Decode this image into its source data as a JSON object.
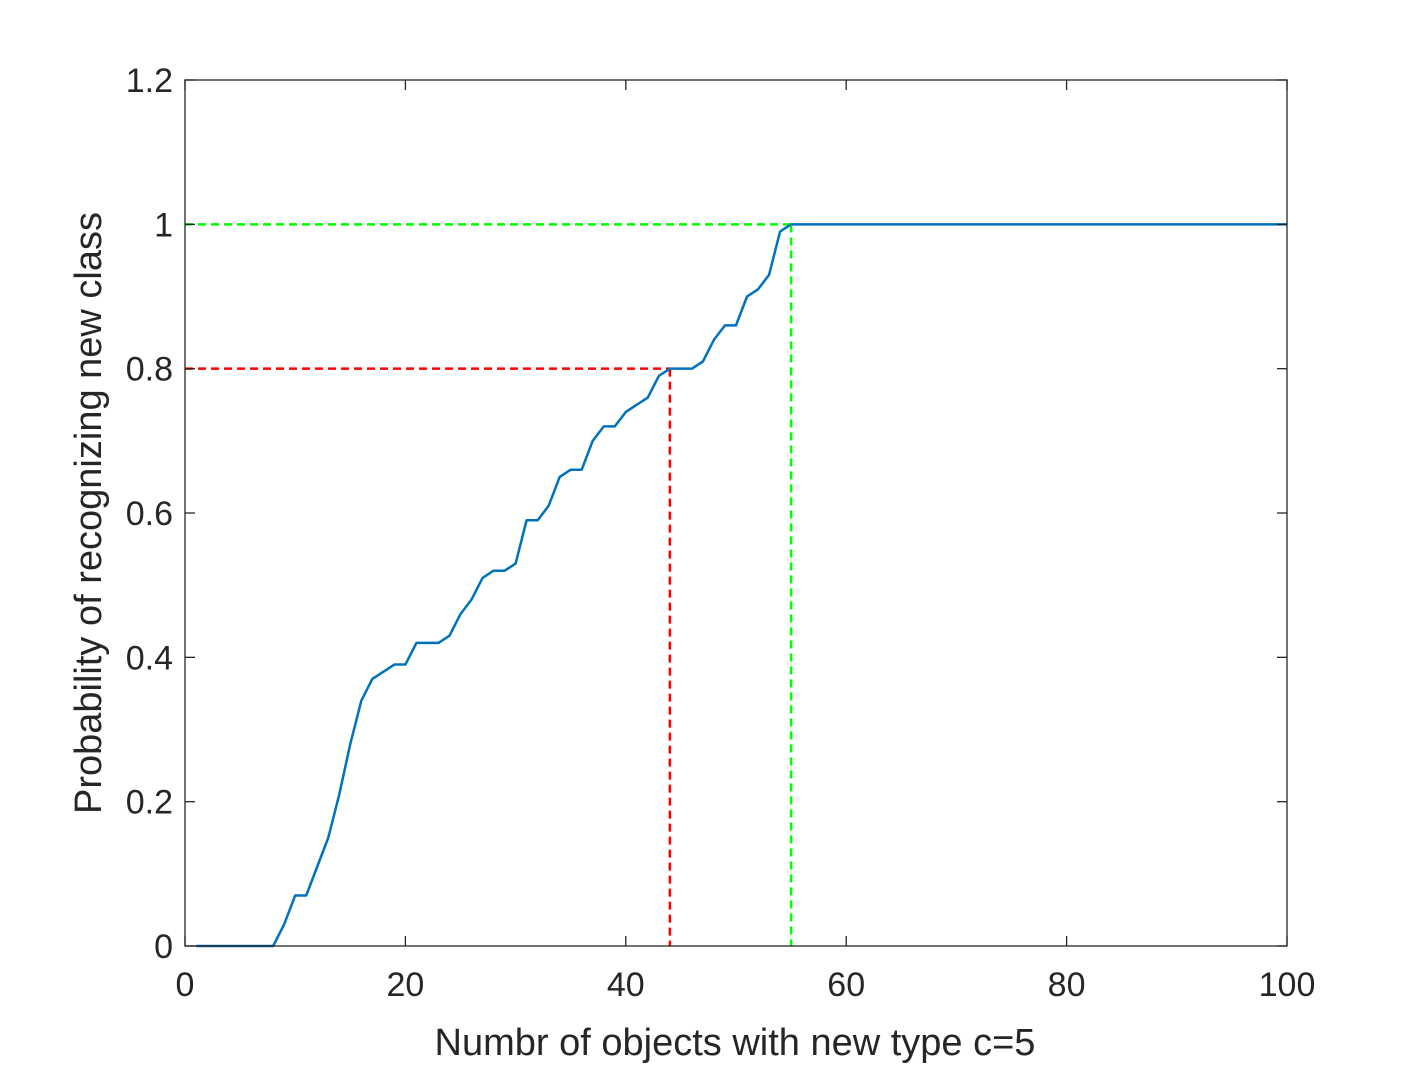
{
  "chart_data": {
    "type": "line",
    "title": "",
    "xlabel": "Numbr of objects with new type c=5",
    "ylabel": "Probability of recognizing new class",
    "xlim": [
      0,
      100
    ],
    "ylim": [
      0,
      1.2
    ],
    "xticks": [
      0,
      20,
      40,
      60,
      80,
      100
    ],
    "yticks": [
      0,
      0.2,
      0.4,
      0.6,
      0.8,
      1,
      1.2
    ],
    "xtick_labels": [
      "0",
      "20",
      "40",
      "60",
      "80",
      "100"
    ],
    "ytick_labels": [
      "0",
      "0.2",
      "0.4",
      "0.6",
      "0.8",
      "1",
      "1.2"
    ],
    "grid": false,
    "series": [
      {
        "color": "#0072BD",
        "x": [
          1,
          2,
          3,
          4,
          5,
          6,
          7,
          8,
          9,
          10,
          11,
          12,
          13,
          14,
          15,
          16,
          17,
          18,
          19,
          20,
          21,
          22,
          23,
          24,
          25,
          26,
          27,
          28,
          29,
          30,
          31,
          32,
          33,
          34,
          35,
          36,
          37,
          38,
          39,
          40,
          41,
          42,
          43,
          44,
          45,
          46,
          47,
          48,
          49,
          50,
          51,
          52,
          53,
          54,
          55,
          56,
          57,
          58,
          59,
          60,
          61,
          62,
          63,
          64,
          65,
          66,
          67,
          68,
          69,
          70,
          71,
          72,
          73,
          74,
          75,
          76,
          77,
          78,
          79,
          80,
          81,
          82,
          83,
          84,
          85,
          86,
          87,
          88,
          89,
          90,
          91,
          92,
          93,
          94,
          95,
          96,
          97,
          98,
          99,
          100
        ],
        "y": [
          0,
          0,
          0,
          0,
          0,
          0,
          0,
          0,
          0.03,
          0.07,
          0.07,
          0.11,
          0.15,
          0.21,
          0.28,
          0.34,
          0.37,
          0.38,
          0.39,
          0.39,
          0.42,
          0.42,
          0.42,
          0.43,
          0.46,
          0.48,
          0.51,
          0.52,
          0.52,
          0.53,
          0.59,
          0.59,
          0.61,
          0.65,
          0.66,
          0.66,
          0.7,
          0.72,
          0.72,
          0.74,
          0.75,
          0.76,
          0.79,
          0.8,
          0.8,
          0.8,
          0.81,
          0.84,
          0.86,
          0.86,
          0.9,
          0.91,
          0.93,
          0.99,
          1,
          1,
          1,
          1,
          1,
          1,
          1,
          1,
          1,
          1,
          1,
          1,
          1,
          1,
          1,
          1,
          1,
          1,
          1,
          1,
          1,
          1,
          1,
          1,
          1,
          1,
          1,
          1,
          1,
          1,
          1,
          1,
          1,
          1,
          1,
          1,
          1,
          1,
          1,
          1,
          1,
          1,
          1,
          1,
          1,
          1
        ]
      }
    ],
    "reference_lines": [
      {
        "color": "#FF0000",
        "style": "dashed",
        "x": 44,
        "y": 0.8
      },
      {
        "color": "#00FF00",
        "style": "dashed",
        "x": 55,
        "y": 1
      }
    ]
  }
}
